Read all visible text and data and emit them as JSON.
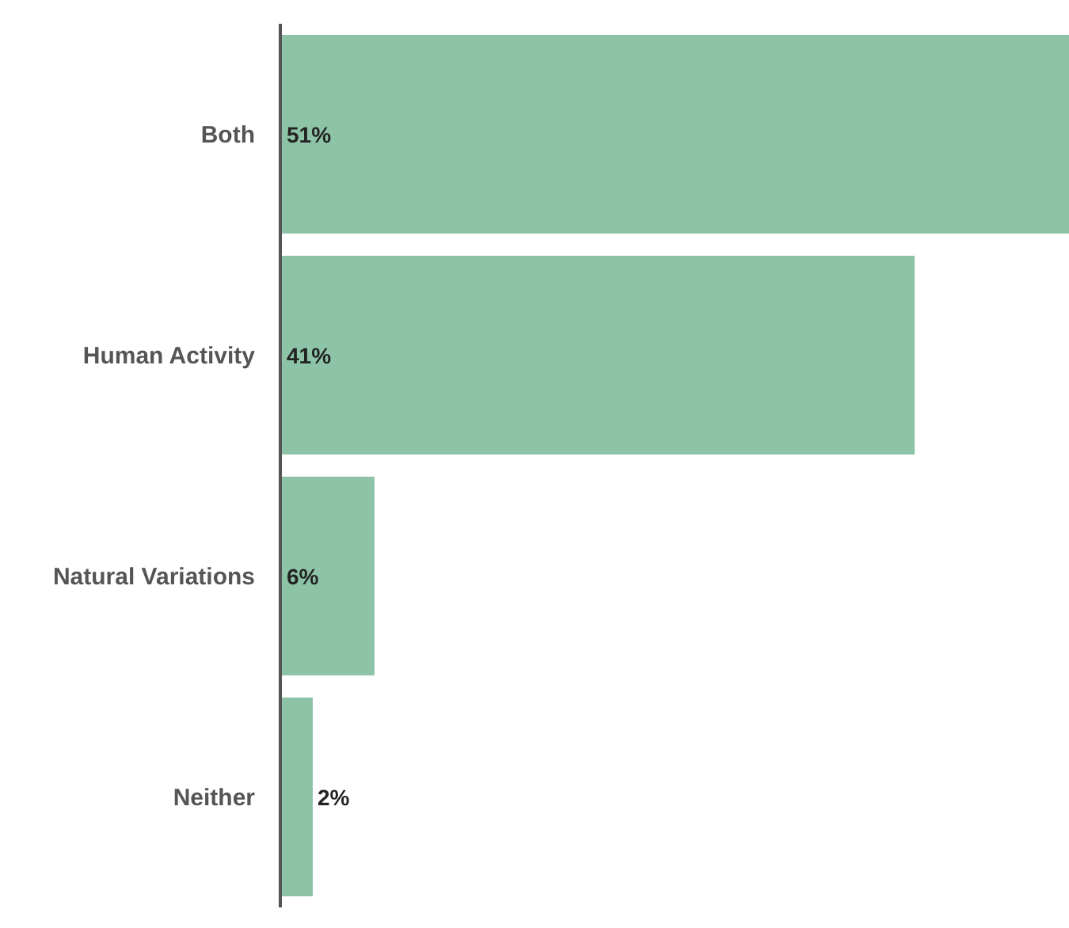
{
  "chart_data": {
    "type": "bar",
    "orientation": "horizontal",
    "categories": [
      "Both",
      "Human Activity",
      "Natural Variations",
      "Neither"
    ],
    "values": [
      51,
      41,
      6,
      2
    ],
    "value_labels": [
      "51%",
      "41%",
      "6%",
      "2%"
    ],
    "color": "#8dc3a7",
    "tick_labels": "y"
  }
}
